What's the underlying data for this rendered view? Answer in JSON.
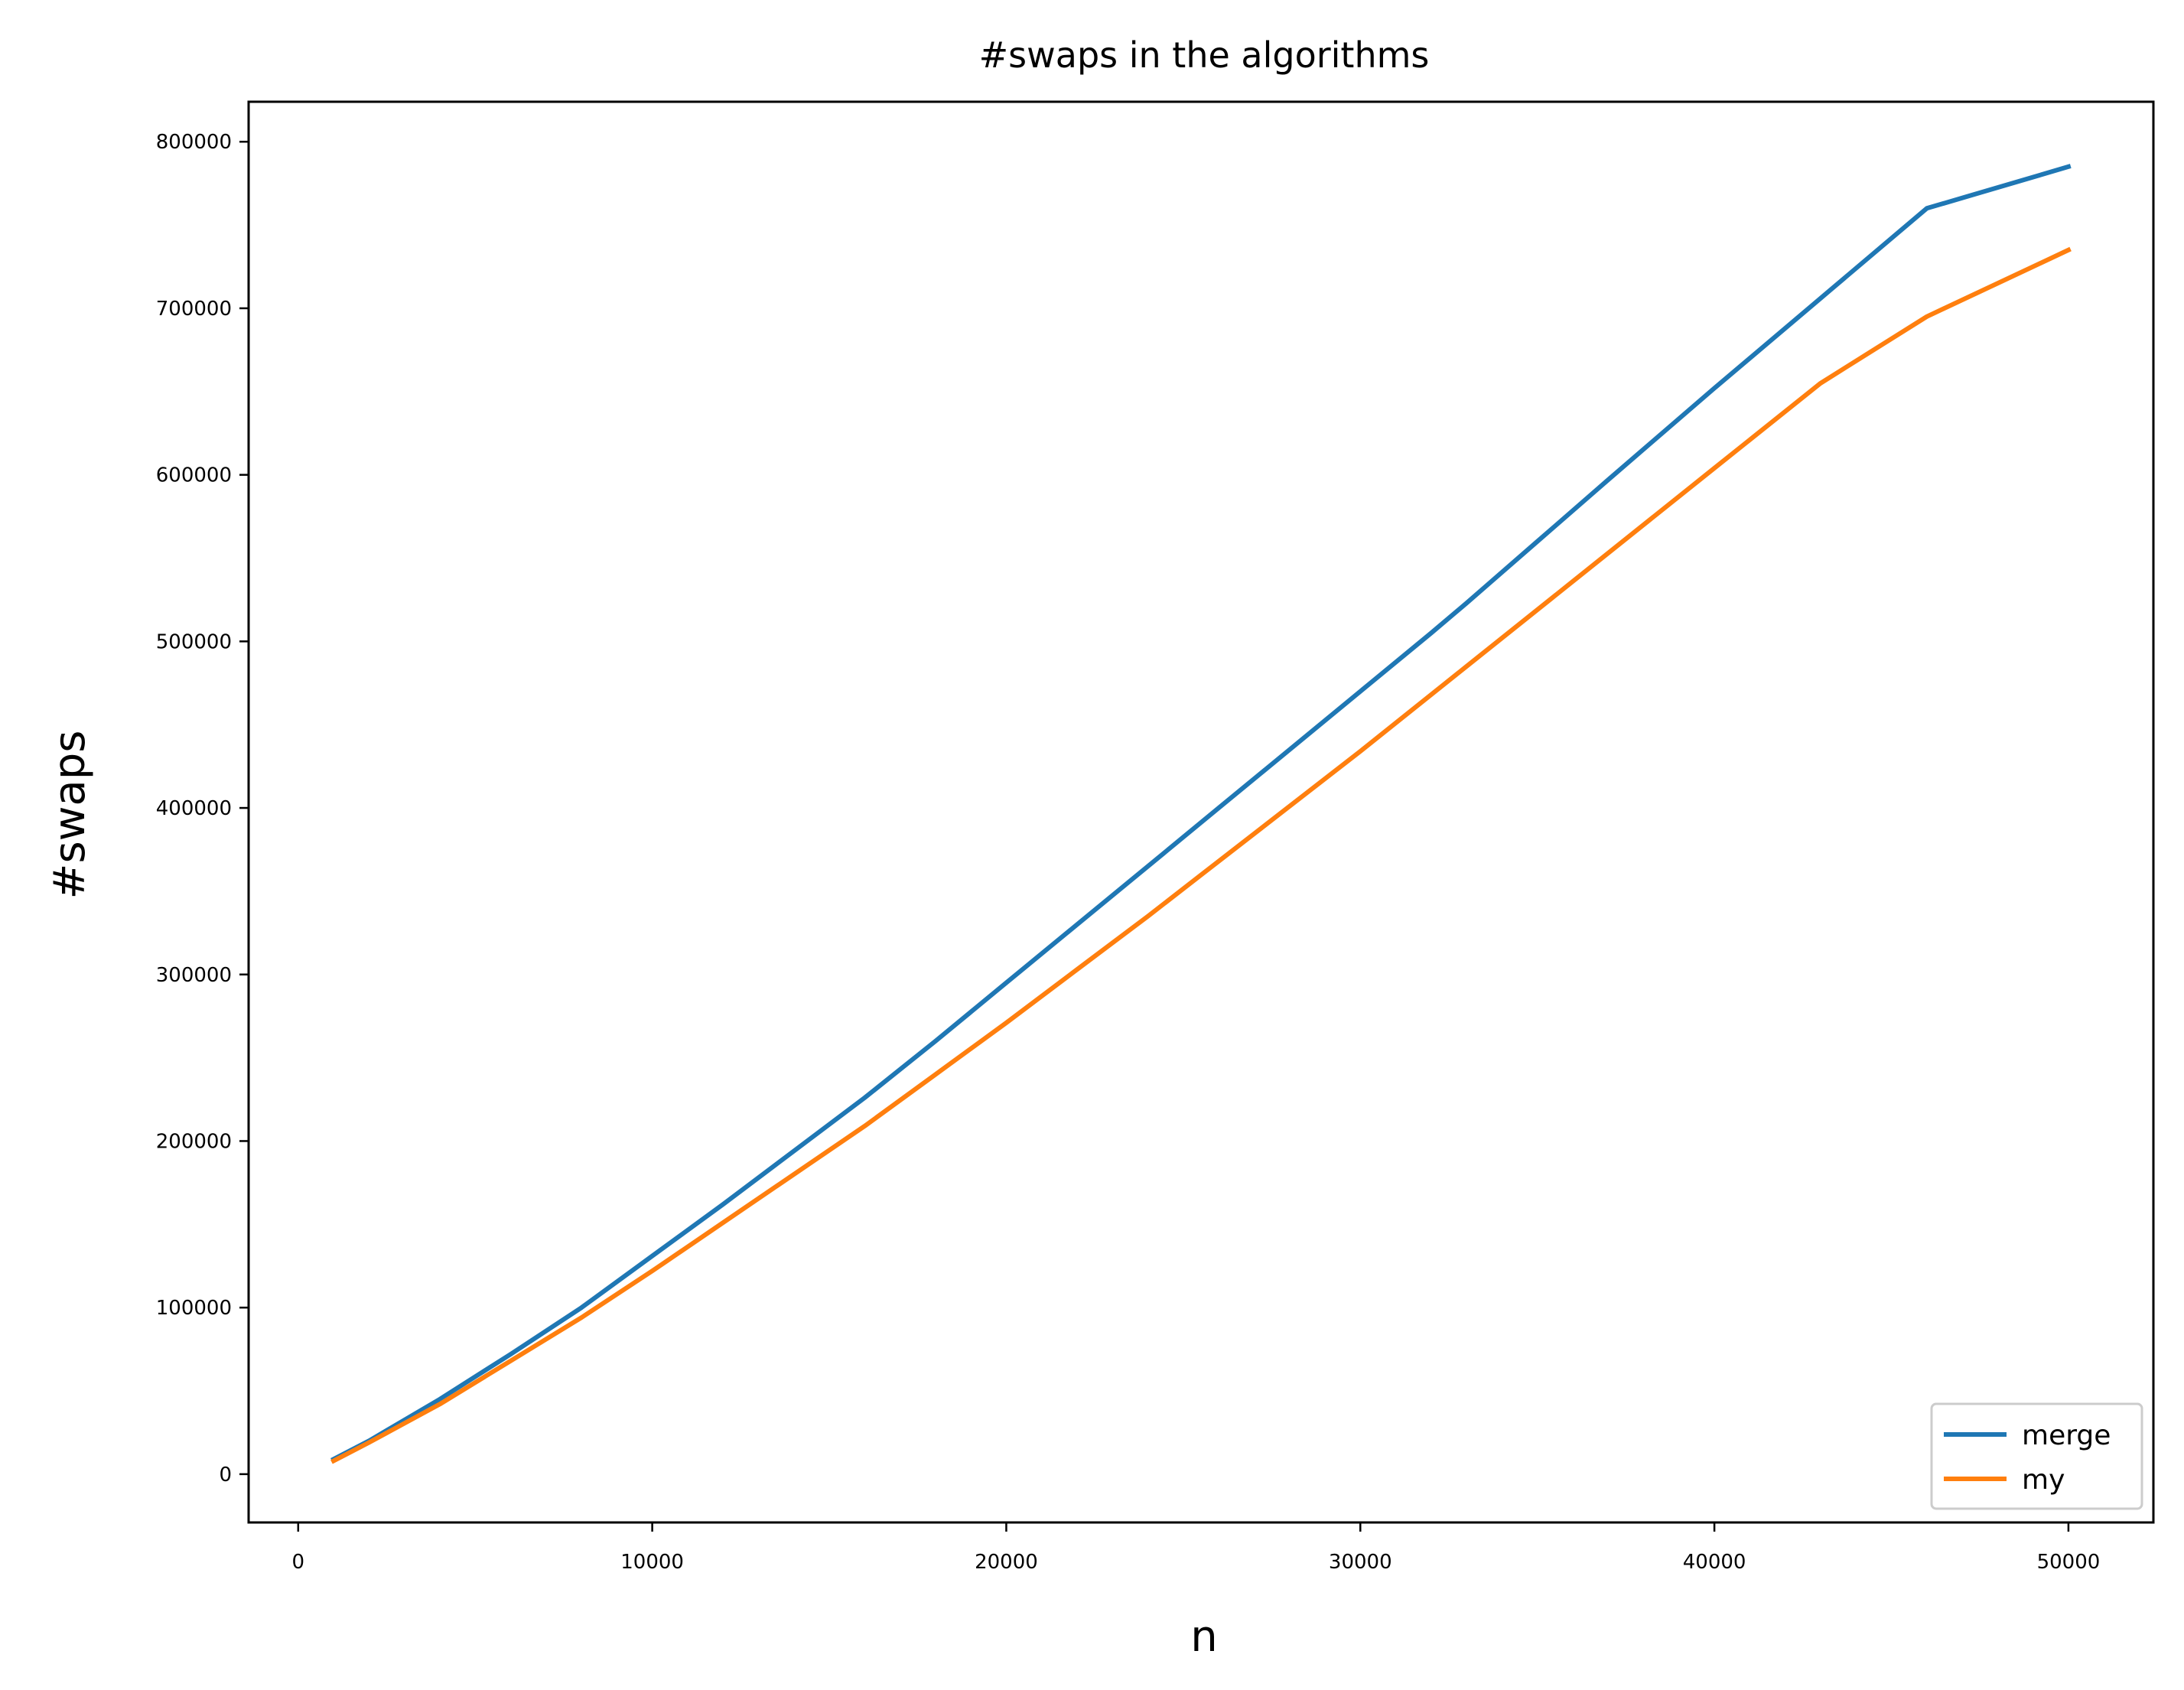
{
  "chart_data": {
    "type": "line",
    "title": "#swaps in the algorithms",
    "xlabel": "n",
    "ylabel": "#swaps",
    "xlim": [
      -1400,
      52400
    ],
    "ylim": [
      -29000,
      824000
    ],
    "xticks": [
      0,
      10000,
      20000,
      30000,
      40000,
      50000
    ],
    "yticks": [
      0,
      100000,
      200000,
      300000,
      400000,
      500000,
      600000,
      700000,
      800000
    ],
    "grid": false,
    "legend_position": "lower right",
    "series": [
      {
        "name": "merge",
        "color": "#1f77b4",
        "x": [
          1000,
          2000,
          4000,
          6000,
          8000,
          10000,
          12000,
          14000,
          16000,
          18000,
          20000,
          22000,
          24000,
          26000,
          28000,
          30000,
          32000,
          33000,
          35000,
          37000,
          40000,
          43000,
          46000,
          50000
        ],
        "y": [
          9000,
          20000,
          45000,
          72000,
          100000,
          131000,
          162000,
          194000,
          226000,
          260000,
          295000,
          330000,
          365000,
          400000,
          435000,
          470000,
          505000,
          523000,
          560000,
          597000,
          652000,
          706000,
          760000,
          785000
        ]
      },
      {
        "name": "my",
        "color": "#ff7f0e",
        "x": [
          1000,
          2000,
          4000,
          6000,
          8000,
          10000,
          12000,
          14000,
          16000,
          18000,
          20000,
          22000,
          24000,
          26000,
          28000,
          30000,
          33000,
          35000,
          37000,
          40000,
          43000,
          46000,
          50000
        ],
        "y": [
          8000,
          19000,
          42000,
          68000,
          94000,
          122000,
          151000,
          180000,
          209000,
          240000,
          271000,
          303000,
          335000,
          368000,
          401000,
          434000,
          485000,
          519000,
          553000,
          604000,
          655000,
          695000,
          735000
        ]
      }
    ]
  }
}
